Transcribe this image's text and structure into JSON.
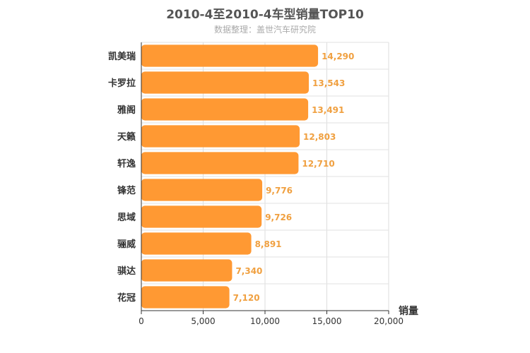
{
  "chart_data": {
    "type": "bar",
    "orientation": "horizontal",
    "title": "2010-4至2010-4车型销量TOP10",
    "subtitle": "数据整理：盖世汽车研究院",
    "categories": [
      "凯美瑞",
      "卡罗拉",
      "雅阁",
      "天籁",
      "轩逸",
      "锋范",
      "思域",
      "骊威",
      "骐达",
      "花冠"
    ],
    "values": [
      14290,
      13543,
      13491,
      12803,
      12710,
      9776,
      9726,
      8891,
      7340,
      7120
    ],
    "value_labels": [
      "14,290",
      "13,543",
      "13,491",
      "12,803",
      "12,710",
      "9,776",
      "9,726",
      "8,891",
      "7,340",
      "7,120"
    ],
    "xlabel": "销量",
    "ylabel": "",
    "xlim": [
      0,
      20000
    ],
    "xticks": [
      0,
      5000,
      10000,
      15000,
      20000
    ],
    "xtick_labels": [
      "0",
      "5,000",
      "10,000",
      "15,000",
      "20,000"
    ],
    "grid": true,
    "bar_color": "#ff9933",
    "label_color": "#f0a040"
  }
}
